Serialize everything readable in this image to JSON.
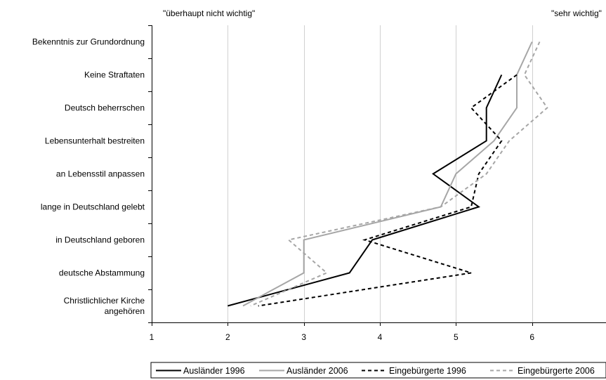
{
  "chart_data": {
    "type": "line",
    "orientation": "horizontal-values",
    "title": "",
    "xlabel": "",
    "ylabel": "",
    "xlim": [
      1,
      7
    ],
    "x_ticks": [
      "1",
      "2",
      "3",
      "4",
      "5",
      "6"
    ],
    "scale_left_label": "\"überhaupt nicht wichtig\"",
    "scale_right_label": "\"sehr wichtig\"",
    "categories": [
      [
        "Bekenntnis zur Grundordnung"
      ],
      [
        "Keine Straftaten"
      ],
      [
        "Deutsch beherrschen"
      ],
      [
        "Lebensunterhalt bestreiten"
      ],
      [
        "an Lebensstil anpassen"
      ],
      [
        "lange in Deutschland gelebt"
      ],
      [
        "in Deutschland geboren"
      ],
      [
        "deutsche Abstammung"
      ],
      [
        "Christlichlicher Kirche",
        "angehören"
      ]
    ],
    "series": [
      {
        "name": "Ausländer 1996",
        "color": "#000000",
        "dash": "solid",
        "values": [
          null,
          5.6,
          5.4,
          5.4,
          4.7,
          5.3,
          3.9,
          3.6,
          2.0
        ]
      },
      {
        "name": "Ausländer 2006",
        "color": "#a6a6a6",
        "dash": "solid",
        "values": [
          6.0,
          5.8,
          5.8,
          5.5,
          5.0,
          4.8,
          3.0,
          3.0,
          2.2
        ]
      },
      {
        "name": "Eingebürgerte 1996",
        "color": "#000000",
        "dash": "dashed",
        "values": [
          null,
          5.8,
          5.2,
          5.6,
          5.3,
          5.2,
          3.8,
          5.2,
          2.4
        ]
      },
      {
        "name": "Eingebürgerte 2006",
        "color": "#a6a6a6",
        "dash": "dashed",
        "values": [
          6.1,
          5.9,
          6.2,
          5.7,
          5.4,
          4.8,
          2.8,
          3.3,
          2.3
        ]
      }
    ],
    "grid": {
      "vertical": true,
      "horizontal": false
    },
    "legend": "bottom"
  }
}
